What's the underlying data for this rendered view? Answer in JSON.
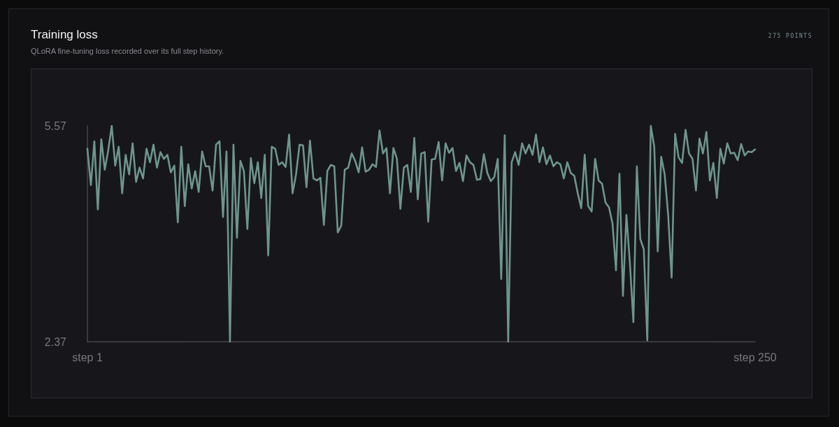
{
  "chart_data": {
    "type": "line",
    "title": "Training loss",
    "subtitle": "QLoRA fine-tuning loss recorded over its full step history.",
    "annotations": [
      "275 POINTS"
    ],
    "color": "#6f958d",
    "marker": "none",
    "grid": false,
    "categories": [
      "step 1",
      null,
      null,
      null,
      null,
      null,
      null,
      null,
      null,
      null,
      null,
      null,
      null,
      null,
      null,
      null,
      null,
      null,
      null,
      null,
      null,
      null,
      null,
      null,
      null,
      null,
      null,
      null,
      null,
      null,
      null,
      null,
      null,
      null,
      null,
      null,
      null,
      null,
      null,
      null,
      null,
      null,
      null,
      null,
      null,
      null,
      null,
      null,
      null,
      null,
      null,
      null,
      null,
      null,
      null,
      null,
      null,
      null,
      null,
      null,
      null,
      null,
      null,
      null,
      null,
      null,
      null,
      null,
      null,
      null,
      null,
      null,
      null,
      null,
      null,
      null,
      null,
      null,
      null,
      null,
      null,
      null,
      null,
      null,
      null,
      null,
      null,
      null,
      null,
      null,
      null,
      null,
      null,
      null,
      null,
      null,
      null,
      null,
      null,
      null,
      null,
      null,
      null,
      null,
      null,
      null,
      null,
      null,
      null,
      null,
      null,
      null,
      null,
      null,
      null,
      null,
      null,
      null,
      null,
      null,
      null,
      null,
      null,
      null,
      null,
      null,
      null,
      null,
      null,
      null,
      null,
      null,
      null,
      null,
      null,
      null,
      null,
      null,
      null,
      null,
      null,
      null,
      null,
      null,
      null,
      null,
      null,
      null,
      null,
      null,
      null,
      null,
      null,
      null,
      null,
      null,
      null,
      null,
      null,
      null,
      null,
      null,
      null,
      null,
      null,
      null,
      null,
      null,
      null,
      null,
      null,
      null,
      null,
      null,
      null,
      null,
      null,
      null,
      null,
      null,
      null,
      null,
      null,
      null,
      null,
      null,
      null,
      null,
      null,
      null,
      null,
      null,
      "step 250"
    ],
    "ylim": [
      2.37,
      5.57
    ],
    "yticks": [
      2.37,
      5.57
    ],
    "values": [
      5.23,
      4.69,
      5.34,
      4.33,
      5.37,
      4.92,
      5.21,
      5.57,
      4.98,
      5.26,
      4.57,
      5.14,
      4.85,
      5.31,
      4.74,
      4.95,
      4.79,
      5.23,
      5.03,
      5.29,
      4.95,
      5.18,
      5.08,
      5.14,
      4.88,
      4.98,
      4.14,
      5.26,
      4.38,
      5.0,
      4.64,
      4.9,
      4.59,
      5.19,
      4.97,
      4.97,
      4.61,
      5.29,
      5.34,
      4.22,
      5.19,
      2.37,
      5.29,
      3.91,
      5.05,
      4.9,
      4.04,
      5.09,
      4.72,
      5.03,
      4.5,
      5.14,
      3.65,
      5.26,
      5.23,
      4.99,
      5.03,
      4.96,
      5.44,
      4.57,
      4.85,
      5.29,
      5.28,
      4.66,
      5.35,
      4.79,
      4.76,
      4.8,
      4.1,
      4.9,
      4.99,
      4.97,
      3.99,
      4.09,
      4.92,
      4.95,
      5.16,
      5.05,
      4.88,
      5.25,
      4.89,
      4.92,
      5.0,
      4.96,
      5.5,
      5.16,
      5.24,
      4.57,
      5.24,
      5.08,
      4.34,
      4.95,
      4.99,
      4.59,
      5.39,
      4.48,
      5.16,
      5.18,
      4.15,
      5.07,
      5.08,
      5.33,
      4.76,
      5.31,
      5.17,
      5.24,
      4.9,
      5.02,
      4.75,
      5.13,
      5.03,
      4.99,
      4.77,
      4.78,
      5.15,
      4.87,
      4.75,
      4.81,
      5.08,
      3.3,
      5.43,
      2.37,
      5.03,
      5.18,
      4.99,
      5.31,
      5.16,
      5.29,
      5.14,
      5.44,
      5.03,
      5.25,
      5.0,
      5.13,
      4.97,
      5.03,
      5.0,
      4.79,
      5.03,
      4.87,
      4.83,
      4.57,
      4.35,
      5.14,
      4.38,
      4.3,
      5.08,
      4.76,
      4.71,
      4.43,
      4.36,
      4.12,
      3.43,
      4.86,
      3.05,
      4.25,
      3.53,
      2.66,
      4.97,
      3.89,
      3.74,
      2.39,
      5.57,
      5.26,
      3.71,
      5.11,
      4.85,
      4.25,
      3.32,
      5.45,
      5.1,
      5.02,
      5.51,
      5.16,
      5.08,
      4.61,
      5.38,
      5.16,
      5.48,
      4.76,
      5.02,
      4.5,
      5.23,
      5.01,
      5.31,
      5.16,
      5.17,
      5.06,
      5.3,
      5.13,
      5.19,
      5.18,
      5.22
    ]
  }
}
